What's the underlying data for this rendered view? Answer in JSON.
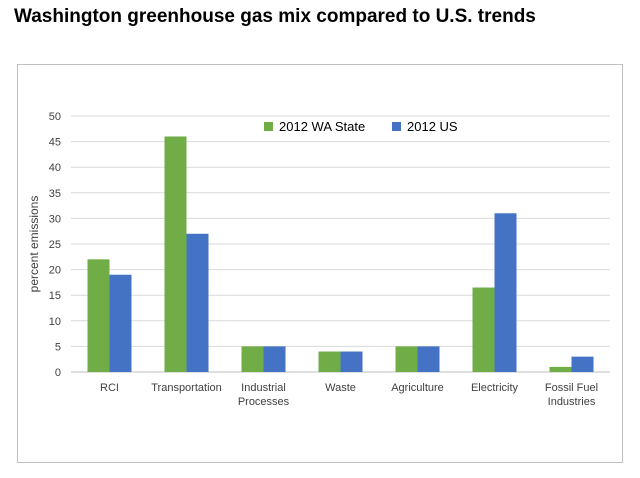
{
  "title": "Washington greenhouse gas mix compared to U.S. trends",
  "chart_data": {
    "type": "bar",
    "ylabel": "percent emissions",
    "xlabel": "",
    "ylim": [
      0,
      50
    ],
    "yticks": [
      0,
      5,
      10,
      15,
      20,
      25,
      30,
      35,
      40,
      45,
      50
    ],
    "grid": true,
    "legend_position": "top-center",
    "categories": [
      [
        "RCI"
      ],
      [
        "Transportation"
      ],
      [
        "Industrial",
        "Processes"
      ],
      [
        "Waste"
      ],
      [
        "Agriculture"
      ],
      [
        "Electricity"
      ],
      [
        "Fossil Fuel",
        "Industries"
      ]
    ],
    "series": [
      {
        "name": "2012 WA State",
        "color": "#70ad47",
        "values": [
          22,
          46,
          5,
          4,
          5,
          16.5,
          1
        ]
      },
      {
        "name": "2012  US",
        "color": "#4472c4",
        "values": [
          19,
          27,
          5,
          4,
          5,
          31,
          3
        ]
      }
    ]
  }
}
